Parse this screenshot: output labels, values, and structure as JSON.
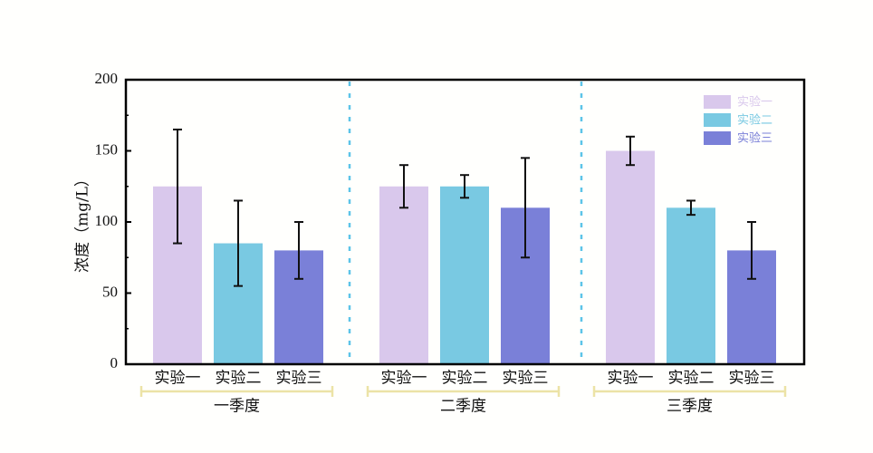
{
  "chart_data": {
    "type": "bar",
    "title": "",
    "xlabel": "",
    "ylabel": "浓度（mg/L）",
    "ylim": [
      0,
      200
    ],
    "yticks": [
      0,
      50,
      100,
      150,
      200
    ],
    "grid": false,
    "legend_position": "top-right",
    "groups": [
      "一季度",
      "二季度",
      "三季度"
    ],
    "categories": [
      "实验一",
      "实验二",
      "实验三"
    ],
    "series": [
      {
        "name": "实验一",
        "color": "#d9c8ec",
        "values": [
          125,
          125,
          150
        ],
        "error_low": [
          85,
          110,
          140
        ],
        "error_high": [
          165,
          140,
          160
        ]
      },
      {
        "name": "实验二",
        "color": "#79c9e2",
        "values": [
          85,
          125,
          110
        ],
        "error_low": [
          55,
          117,
          105
        ],
        "error_high": [
          115,
          133,
          115
        ]
      },
      {
        "name": "实验三",
        "color": "#7a80d8",
        "values": [
          80,
          110,
          80
        ],
        "error_low": [
          60,
          75,
          60
        ],
        "error_high": [
          100,
          145,
          100
        ]
      }
    ],
    "group_bracket_color": "#ece3a6",
    "divider_color": "#5cc4e8"
  },
  "legend": {
    "items": [
      {
        "label": "实验一",
        "color": "#d9c8ec"
      },
      {
        "label": "实验二",
        "color": "#79c9e2"
      },
      {
        "label": "实验三",
        "color": "#7a80d8"
      }
    ]
  }
}
